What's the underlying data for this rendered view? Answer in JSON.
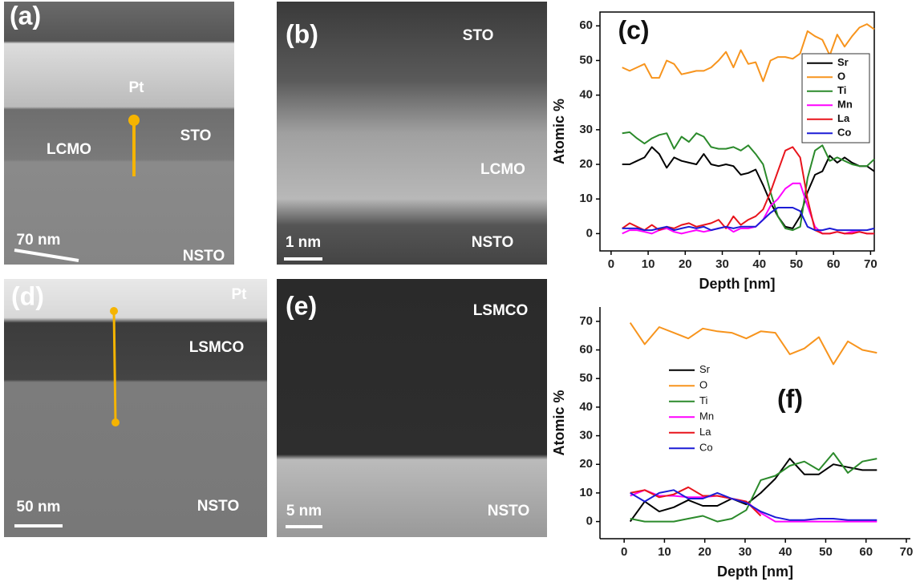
{
  "panels": [
    {
      "label": "(a)",
      "texts": [
        "Pt",
        "STO",
        "LCMO",
        "NSTO"
      ],
      "scale_bar": "70 nm"
    },
    {
      "label": "(b)",
      "texts": [
        "STO",
        "LCMO",
        "NSTO"
      ],
      "scale_bar": "1 nm"
    },
    {
      "label": "(d)",
      "texts": [
        "Pt",
        "LSMCO",
        "NSTO"
      ],
      "scale_bar": "50 nm"
    },
    {
      "label": "(e)",
      "texts": [
        "LSMCO",
        "NSTO"
      ],
      "scale_bar": "5 nm"
    }
  ],
  "chart_data": [
    {
      "type": "line",
      "label": "(c)",
      "xlabel": "Depth [nm]",
      "ylabel": "Atomic %",
      "xlim": [
        -3,
        71
      ],
      "ylim": [
        -5,
        64
      ],
      "xticks": [
        0,
        10,
        20,
        30,
        40,
        50,
        60,
        70
      ],
      "yticks": [
        0,
        10,
        20,
        30,
        40,
        50,
        60
      ],
      "legend": "upper right",
      "legend_frame": true,
      "box": true,
      "x": [
        3,
        5,
        7,
        9,
        11,
        13,
        15,
        17,
        19,
        21,
        23,
        25,
        27,
        29,
        31,
        33,
        35,
        37,
        39,
        41,
        43,
        45,
        47,
        49,
        51,
        53,
        55,
        57,
        59,
        61,
        63,
        65,
        67,
        69,
        71
      ],
      "series": [
        {
          "name": "Sr",
          "color": "#000000",
          "values": [
            20,
            20,
            21,
            22,
            25,
            23,
            19,
            22,
            21,
            20.5,
            20,
            23,
            20,
            19.5,
            20,
            19.5,
            17,
            17.5,
            18.5,
            14,
            9,
            5,
            2,
            1.5,
            5,
            12,
            17,
            18,
            22.5,
            20.5,
            22,
            20.5,
            19.5,
            19.5,
            18
          ]
        },
        {
          "name": "O",
          "color": "#f7941d",
          "values": [
            48,
            47,
            48,
            49,
            45,
            45,
            50,
            49,
            46,
            46.5,
            47,
            47,
            48,
            50,
            52.5,
            48,
            53,
            49,
            49.5,
            44,
            50,
            51,
            51,
            50.5,
            52,
            58.5,
            57,
            56,
            51.5,
            57.5,
            54,
            57,
            59.5,
            60.5,
            59
          ]
        },
        {
          "name": "Ti",
          "color": "#2b8a2b",
          "values": [
            29,
            29.3,
            27.5,
            26,
            27.5,
            28.5,
            29,
            24.5,
            28,
            26.5,
            29,
            28,
            25,
            24.5,
            24.5,
            25,
            24,
            25.5,
            23,
            20,
            12,
            5,
            1.5,
            1,
            2,
            16,
            24,
            25.5,
            21,
            22,
            21,
            20,
            19.5,
            19.5,
            21.5
          ]
        },
        {
          "name": "Mn",
          "color": "#ff00ff",
          "values": [
            0,
            1,
            1,
            0.5,
            0,
            1,
            1.5,
            0.5,
            0,
            0.5,
            1,
            0.5,
            1,
            1.5,
            2,
            0.5,
            1.5,
            1.5,
            2,
            4,
            8,
            10,
            13,
            14.5,
            14.5,
            8,
            2,
            0,
            0,
            0.5,
            0,
            0.5,
            0.5,
            0,
            0
          ]
        },
        {
          "name": "La",
          "color": "#e8141c",
          "values": [
            1.5,
            3,
            2,
            1,
            2.5,
            1,
            2,
            1.5,
            2.5,
            3,
            2,
            2.5,
            3,
            4,
            1.5,
            5,
            2.5,
            4,
            5,
            7,
            12,
            18,
            24,
            25,
            22,
            10,
            1,
            0,
            0,
            0.5,
            0,
            0,
            0.5,
            0,
            0
          ]
        },
        {
          "name": "Co",
          "color": "#1c1cd6",
          "values": [
            1.5,
            1.5,
            1.5,
            1,
            1,
            1.5,
            2,
            1,
            1.5,
            2,
            1.5,
            2,
            1,
            1.5,
            2,
            1.5,
            2,
            2,
            2,
            4,
            6,
            7.5,
            7.5,
            7.5,
            6.5,
            2,
            1,
            1,
            1.5,
            1,
            1,
            1,
            1,
            1,
            1.5
          ]
        }
      ]
    },
    {
      "type": "line",
      "label": "(f)",
      "xlabel": "Depth [nm]",
      "ylabel": "Atomic %",
      "xlim": [
        -6,
        71
      ],
      "ylim": [
        -6,
        75
      ],
      "xticks": [
        0,
        10,
        20,
        30,
        40,
        50,
        60,
        70
      ],
      "yticks": [
        0,
        10,
        20,
        30,
        40,
        50,
        60,
        70
      ],
      "legend": "center left",
      "legend_frame": false,
      "box": false,
      "x": [
        1.5,
        5.1,
        8.7,
        12.3,
        15.9,
        19.5,
        23.1,
        26.7,
        30.3,
        33.9,
        37.5,
        41.1,
        44.7,
        48.3,
        51.9,
        55.5,
        59.1,
        62.7
      ],
      "series": [
        {
          "name": "Sr",
          "color": "#000000",
          "values": [
            0,
            7,
            3.5,
            5,
            7.5,
            5.5,
            5.5,
            8,
            6,
            10,
            15,
            22,
            16.5,
            16.5,
            20,
            19,
            18,
            18
          ]
        },
        {
          "name": "O",
          "color": "#f7941d",
          "values": [
            69.5,
            62,
            68,
            66,
            64,
            67.5,
            66.5,
            66,
            64,
            66.5,
            66,
            58.5,
            60.5,
            64.5,
            55,
            63,
            60,
            59
          ]
        },
        {
          "name": "Ti",
          "color": "#2b8a2b",
          "values": [
            1,
            0,
            0,
            0,
            1,
            2,
            0,
            1,
            4,
            14.5,
            16,
            19.5,
            21,
            18,
            24,
            17,
            21,
            22
          ]
        },
        {
          "name": "Mn",
          "color": "#ff00ff",
          "values": [
            9,
            11,
            9,
            9,
            8.5,
            8.5,
            9,
            8,
            7,
            3,
            0,
            0,
            0,
            0,
            0,
            0,
            0,
            0
          ]
        },
        {
          "name": "La",
          "color": "#e8141c",
          "values": [
            10,
            11,
            8.5,
            9.5,
            12,
            9,
            9,
            8,
            7,
            2,
            null,
            null,
            null,
            null,
            null,
            null,
            null,
            null
          ]
        },
        {
          "name": "Co",
          "color": "#1c1cd6",
          "values": [
            10,
            7,
            10,
            11,
            8,
            8,
            10,
            8,
            6.5,
            3.5,
            1.5,
            0.5,
            0.5,
            1,
            1,
            0.5,
            0.5,
            0.5
          ]
        }
      ]
    }
  ]
}
